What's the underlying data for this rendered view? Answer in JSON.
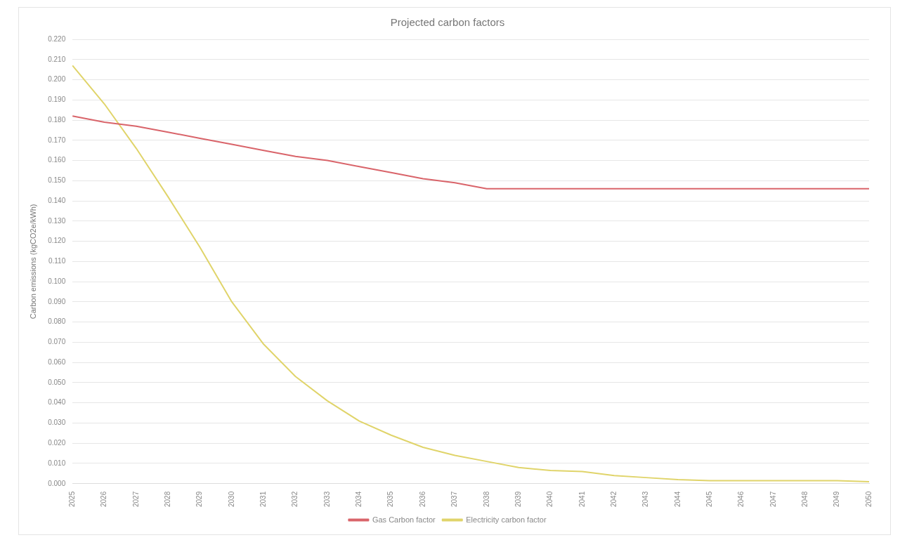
{
  "chart_data": {
    "type": "line",
    "title": "Projected carbon factors",
    "ylabel": "Carbon emissions (kgCO2e/kWh)",
    "categories": [
      "2025",
      "2026",
      "2027",
      "2028",
      "2029",
      "2030",
      "2031",
      "2032",
      "2033",
      "2034",
      "2035",
      "2036",
      "2037",
      "2038",
      "2039",
      "2040",
      "2041",
      "2042",
      "2043",
      "2044",
      "2045",
      "2046",
      "2047",
      "2048",
      "2049",
      "2050"
    ],
    "series": [
      {
        "name": "Gas Carbon factor",
        "color": "#d9646a",
        "values": [
          0.182,
          0.179,
          0.177,
          0.174,
          0.171,
          0.168,
          0.165,
          0.162,
          0.16,
          0.157,
          0.154,
          0.151,
          0.149,
          0.146,
          0.146,
          0.146,
          0.146,
          0.146,
          0.146,
          0.146,
          0.146,
          0.146,
          0.146,
          0.146,
          0.146,
          0.146
        ]
      },
      {
        "name": "Electricity carbon factor",
        "color": "#e0d46a",
        "values": [
          0.207,
          0.188,
          0.166,
          0.142,
          0.117,
          0.09,
          0.069,
          0.053,
          0.041,
          0.031,
          0.024,
          0.018,
          0.014,
          0.011,
          0.008,
          0.0065,
          0.006,
          0.004,
          0.003,
          0.002,
          0.0015,
          0.0015,
          0.0015,
          0.0015,
          0.0015,
          0.001
        ]
      }
    ],
    "ylim": [
      0,
      0.22
    ],
    "yticks": [
      {
        "value": 0,
        "label": "0.000"
      },
      {
        "value": 0.01,
        "label": "0.010"
      },
      {
        "value": 0.02,
        "label": "0.020"
      },
      {
        "value": 0.03,
        "label": "0.030"
      },
      {
        "value": 0.04,
        "label": "0.040"
      },
      {
        "value": 0.05,
        "label": "0.050"
      },
      {
        "value": 0.06,
        "label": "0.060"
      },
      {
        "value": 0.07,
        "label": "0.070"
      },
      {
        "value": 0.08,
        "label": "0.080"
      },
      {
        "value": 0.09,
        "label": "0.090"
      },
      {
        "value": 0.1,
        "label": "0.100"
      },
      {
        "value": 0.11,
        "label": "0.110"
      },
      {
        "value": 0.12,
        "label": "0.120"
      },
      {
        "value": 0.13,
        "label": "0.130"
      },
      {
        "value": 0.14,
        "label": "0.140"
      },
      {
        "value": 0.15,
        "label": "0.150"
      },
      {
        "value": 0.16,
        "label": "0.160"
      },
      {
        "value": 0.17,
        "label": "0.170"
      },
      {
        "value": 0.18,
        "label": "0.180"
      },
      {
        "value": 0.19,
        "label": "0.190"
      },
      {
        "value": 0.2,
        "label": "0.200"
      },
      {
        "value": 0.21,
        "label": "0.210"
      },
      {
        "value": 0.22,
        "label": "0.220"
      }
    ],
    "grid": "y",
    "legend": "bottom",
    "marker": "none",
    "line_style": "solid"
  }
}
